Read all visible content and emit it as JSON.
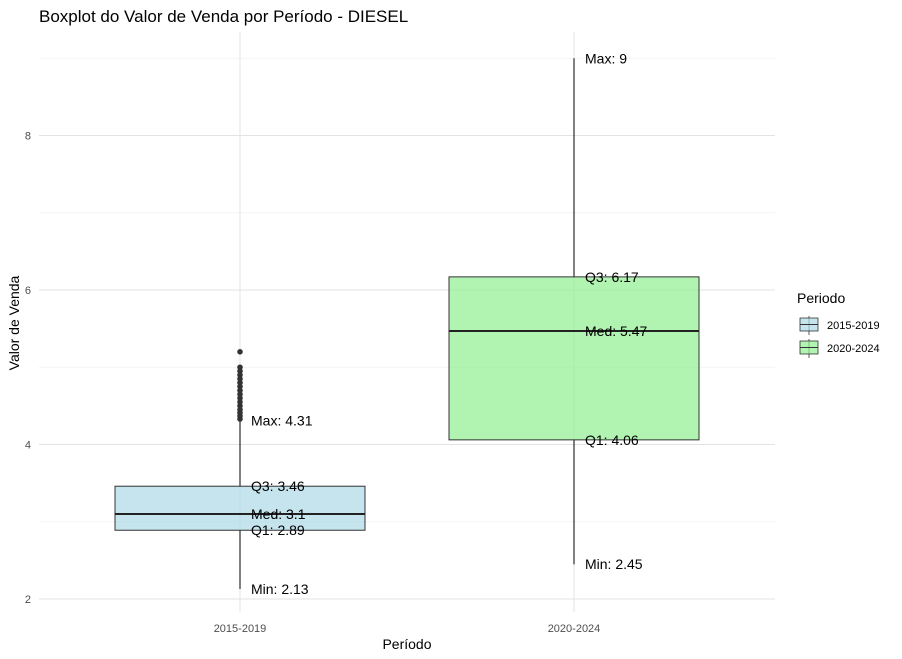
{
  "chart_data": {
    "type": "boxplot",
    "title": "Boxplot do Valor de Venda por Período - DIESEL",
    "xlabel": "Período",
    "ylabel": "Valor de Venda",
    "ylim": [
      1.8,
      9.6
    ],
    "yticks": [
      2,
      4,
      6,
      8
    ],
    "grid": true,
    "legend": {
      "title": "Periodo",
      "position": "right",
      "entries": [
        "2015-2019",
        "2020-2024"
      ]
    },
    "categories": [
      "2015-2019",
      "2020-2024"
    ],
    "boxes": [
      {
        "name": "2015-2019",
        "min": 2.13,
        "q1": 2.89,
        "median": 3.1,
        "q3": 3.46,
        "max": 4.31,
        "outliers": [
          4.33,
          4.37,
          4.41,
          4.45,
          4.5,
          4.55,
          4.6,
          4.65,
          4.7,
          4.75,
          4.8,
          4.85,
          4.9,
          4.95,
          5.0,
          5.2
        ],
        "color": "#add8e6",
        "labels": {
          "max": "Max: 4.31",
          "q3": "Q3: 3.46",
          "median": "Med: 3.1",
          "q1": "Q1: 2.89",
          "min": "Min: 2.13"
        }
      },
      {
        "name": "2020-2024",
        "min": 2.45,
        "q1": 4.06,
        "median": 5.47,
        "q3": 6.17,
        "max": 9,
        "outliers": [],
        "color": "#90ee90",
        "labels": {
          "max": "Max: 9",
          "q3": "Q3: 6.17",
          "median": "Med: 5.47",
          "q1": "Q1: 4.06",
          "min": "Min: 2.45"
        }
      }
    ]
  }
}
